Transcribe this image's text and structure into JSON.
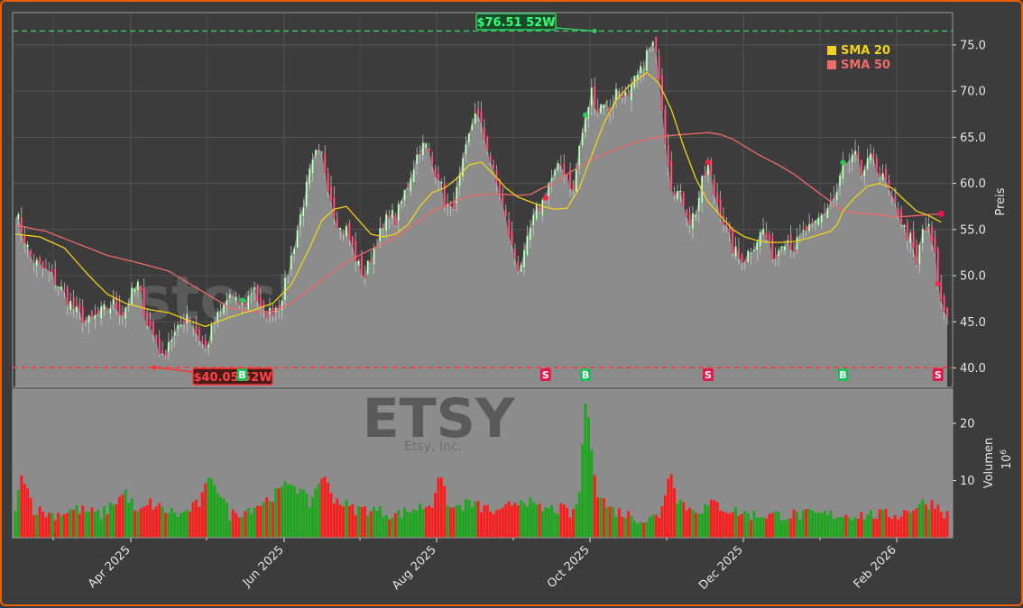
{
  "watermark": {
    "site": "stocksignale.trade",
    "ticker": "ETSY",
    "company": "Etsy, Inc."
  },
  "colors": {
    "up": "#1aa81a",
    "down": "#ff1a1a",
    "sma20": "#f2d21a",
    "sma50": "#f06a6a",
    "high_line": "#33cc66",
    "low_line": "#ff3333",
    "buy": "#1abf5a",
    "sell": "#e6174a",
    "area": "#8c8c8c"
  },
  "chart_data": {
    "type": "candlestick",
    "price_axis": {
      "label": "Preis",
      "ylim": [
        37.9,
        78.5
      ],
      "ticks": [
        "40.0",
        "45.0",
        "50.0",
        "55.0",
        "60.0",
        "65.0",
        "70.0",
        "75.0"
      ]
    },
    "volume_axis": {
      "label": "Volumen",
      "exponent": "10",
      "exponent_power": "6",
      "ylim": [
        0,
        26
      ],
      "ticks": [
        "10",
        "20"
      ]
    },
    "x_axis": {
      "ticks": [
        "Apr 2025",
        "Jun 2025",
        "Aug 2025",
        "Oct 2025",
        "Dec 2025",
        "Feb 2026"
      ]
    },
    "grid": true,
    "legend": {
      "placement": "top-right",
      "entries": [
        {
          "label": "SMA 20",
          "color": "#f2d21a"
        },
        {
          "label": "SMA 50",
          "color": "#f06a6a"
        }
      ]
    },
    "high_52w": {
      "value": 76.51,
      "label": "$76.51 52W"
    },
    "low_52w": {
      "value": 40.05,
      "label": "$40.05 52W"
    },
    "price_anchors": [
      [
        0,
        57
      ],
      [
        2,
        55
      ],
      [
        5,
        52
      ],
      [
        8,
        51
      ],
      [
        12,
        50
      ],
      [
        16,
        48
      ],
      [
        20,
        46
      ],
      [
        24,
        45
      ],
      [
        28,
        46
      ],
      [
        32,
        47
      ],
      [
        35,
        46
      ],
      [
        38,
        48
      ],
      [
        40,
        49
      ],
      [
        43,
        45
      ],
      [
        46,
        43
      ],
      [
        48,
        41
      ],
      [
        50,
        43
      ],
      [
        53,
        44
      ],
      [
        56,
        46
      ],
      [
        59,
        44
      ],
      [
        62,
        42
      ],
      [
        65,
        45
      ],
      [
        67,
        46
      ],
      [
        70,
        48
      ],
      [
        72,
        47
      ],
      [
        75,
        47
      ],
      [
        78,
        49
      ],
      [
        80,
        46
      ],
      [
        83,
        46
      ],
      [
        86,
        47
      ],
      [
        88,
        49
      ],
      [
        90,
        52
      ],
      [
        92,
        55
      ],
      [
        94,
        58
      ],
      [
        96,
        61
      ],
      [
        98,
        63
      ],
      [
        100,
        63
      ],
      [
        102,
        60
      ],
      [
        104,
        57
      ],
      [
        106,
        55
      ],
      [
        108,
        55
      ],
      [
        110,
        53
      ],
      [
        112,
        51
      ],
      [
        114,
        50
      ],
      [
        116,
        52
      ],
      [
        118,
        54
      ],
      [
        120,
        55
      ],
      [
        122,
        57
      ],
      [
        124,
        56
      ],
      [
        126,
        58
      ],
      [
        128,
        60
      ],
      [
        130,
        62
      ],
      [
        132,
        64
      ],
      [
        134,
        64
      ],
      [
        136,
        62
      ],
      [
        138,
        61
      ],
      [
        140,
        58
      ],
      [
        142,
        57
      ],
      [
        144,
        59
      ],
      [
        146,
        62
      ],
      [
        148,
        65
      ],
      [
        150,
        68
      ],
      [
        152,
        66
      ],
      [
        154,
        64
      ],
      [
        156,
        61
      ],
      [
        158,
        59
      ],
      [
        160,
        56
      ],
      [
        162,
        53
      ],
      [
        164,
        51
      ],
      [
        166,
        52
      ],
      [
        168,
        55
      ],
      [
        170,
        57
      ],
      [
        172,
        58
      ],
      [
        174,
        60
      ],
      [
        176,
        61
      ],
      [
        178,
        62
      ],
      [
        180,
        61
      ],
      [
        182,
        59
      ],
      [
        184,
        64
      ],
      [
        186,
        67
      ],
      [
        188,
        70
      ],
      [
        190,
        68
      ],
      [
        192,
        69
      ],
      [
        194,
        68
      ],
      [
        196,
        70
      ],
      [
        198,
        70
      ],
      [
        200,
        69
      ],
      [
        202,
        71
      ],
      [
        204,
        72
      ],
      [
        206,
        74
      ],
      [
        208,
        75
      ],
      [
        210,
        72
      ],
      [
        212,
        65
      ],
      [
        214,
        60
      ],
      [
        216,
        59
      ],
      [
        218,
        58
      ],
      [
        220,
        56
      ],
      [
        222,
        57
      ],
      [
        224,
        60
      ],
      [
        226,
        62
      ],
      [
        228,
        59
      ],
      [
        230,
        57
      ],
      [
        232,
        55
      ],
      [
        234,
        53
      ],
      [
        236,
        52
      ],
      [
        238,
        52
      ],
      [
        240,
        53
      ],
      [
        242,
        54
      ],
      [
        244,
        55
      ],
      [
        246,
        53
      ],
      [
        248,
        52
      ],
      [
        250,
        54
      ],
      [
        252,
        54
      ],
      [
        254,
        53
      ],
      [
        256,
        54
      ],
      [
        258,
        55
      ],
      [
        260,
        55
      ],
      [
        262,
        56
      ],
      [
        264,
        57
      ],
      [
        266,
        58
      ],
      [
        268,
        59
      ],
      [
        270,
        62
      ],
      [
        272,
        62
      ],
      [
        274,
        63
      ],
      [
        276,
        61
      ],
      [
        278,
        62
      ],
      [
        280,
        63
      ],
      [
        282,
        61
      ],
      [
        284,
        60
      ],
      [
        286,
        58
      ],
      [
        288,
        57
      ],
      [
        290,
        55
      ],
      [
        292,
        54
      ],
      [
        294,
        51
      ],
      [
        296,
        55
      ],
      [
        298,
        55
      ],
      [
        300,
        52
      ],
      [
        302,
        47
      ],
      [
        304,
        45.5
      ]
    ],
    "volume_anchors": [
      [
        0,
        4
      ],
      [
        2,
        12
      ],
      [
        6,
        5
      ],
      [
        12,
        4
      ],
      [
        20,
        5
      ],
      [
        28,
        4
      ],
      [
        36,
        8
      ],
      [
        40,
        4
      ],
      [
        44,
        6
      ],
      [
        48,
        5
      ],
      [
        54,
        4
      ],
      [
        60,
        6
      ],
      [
        64,
        11
      ],
      [
        70,
        4
      ],
      [
        76,
        5
      ],
      [
        80,
        6
      ],
      [
        86,
        8
      ],
      [
        90,
        10
      ],
      [
        96,
        6
      ],
      [
        100,
        11
      ],
      [
        104,
        7
      ],
      [
        110,
        5
      ],
      [
        116,
        5
      ],
      [
        124,
        4
      ],
      [
        130,
        5
      ],
      [
        136,
        6
      ],
      [
        138,
        11
      ],
      [
        142,
        5
      ],
      [
        148,
        6
      ],
      [
        154,
        5
      ],
      [
        158,
        4
      ],
      [
        162,
        6
      ],
      [
        166,
        7
      ],
      [
        170,
        5
      ],
      [
        174,
        5
      ],
      [
        178,
        5
      ],
      [
        182,
        4
      ],
      [
        184,
        8
      ],
      [
        186,
        24
      ],
      [
        188,
        16
      ],
      [
        190,
        8
      ],
      [
        194,
        5
      ],
      [
        200,
        4
      ],
      [
        206,
        3
      ],
      [
        210,
        4
      ],
      [
        214,
        12
      ],
      [
        216,
        7
      ],
      [
        220,
        5
      ],
      [
        224,
        5
      ],
      [
        228,
        6
      ],
      [
        232,
        5
      ],
      [
        240,
        4
      ],
      [
        246,
        4
      ],
      [
        252,
        4
      ],
      [
        258,
        4
      ],
      [
        264,
        4
      ],
      [
        270,
        4
      ],
      [
        276,
        4
      ],
      [
        282,
        4
      ],
      [
        288,
        4
      ],
      [
        292,
        5
      ],
      [
        296,
        6
      ],
      [
        300,
        6
      ],
      [
        304,
        4
      ]
    ],
    "sma20_anchors": [
      [
        0,
        54.5
      ],
      [
        8,
        54.2
      ],
      [
        16,
        53
      ],
      [
        24,
        50
      ],
      [
        30,
        48
      ],
      [
        36,
        47
      ],
      [
        44,
        46.3
      ],
      [
        50,
        46
      ],
      [
        56,
        45.2
      ],
      [
        62,
        44.5
      ],
      [
        70,
        45.5
      ],
      [
        78,
        46.3
      ],
      [
        84,
        47
      ],
      [
        90,
        49
      ],
      [
        96,
        53
      ],
      [
        100,
        56
      ],
      [
        104,
        57.2
      ],
      [
        108,
        57.5
      ],
      [
        112,
        56
      ],
      [
        116,
        54.5
      ],
      [
        120,
        54.2
      ],
      [
        124,
        54.5
      ],
      [
        128,
        55.5
      ],
      [
        132,
        57.5
      ],
      [
        136,
        59
      ],
      [
        140,
        59.5
      ],
      [
        144,
        60.5
      ],
      [
        148,
        62
      ],
      [
        152,
        62.3
      ],
      [
        156,
        61
      ],
      [
        160,
        59.5
      ],
      [
        164,
        58.5
      ],
      [
        168,
        58
      ],
      [
        172,
        57.5
      ],
      [
        176,
        57.2
      ],
      [
        180,
        57.3
      ],
      [
        184,
        59.5
      ],
      [
        188,
        63
      ],
      [
        192,
        66.5
      ],
      [
        196,
        69
      ],
      [
        200,
        70.5
      ],
      [
        204,
        71.5
      ],
      [
        206,
        72
      ],
      [
        210,
        70.8
      ],
      [
        214,
        68
      ],
      [
        218,
        64
      ],
      [
        222,
        60.5
      ],
      [
        226,
        58
      ],
      [
        230,
        56.5
      ],
      [
        234,
        55
      ],
      [
        238,
        54.2
      ],
      [
        242,
        53.8
      ],
      [
        246,
        53.6
      ],
      [
        250,
        53.6
      ],
      [
        254,
        53.7
      ],
      [
        258,
        54
      ],
      [
        262,
        54.4
      ],
      [
        266,
        54.8
      ],
      [
        268,
        55.5
      ],
      [
        270,
        57
      ],
      [
        274,
        58.5
      ],
      [
        278,
        59.7
      ],
      [
        282,
        60
      ],
      [
        286,
        59.5
      ],
      [
        290,
        58.2
      ],
      [
        294,
        57
      ],
      [
        298,
        56.5
      ],
      [
        302,
        55.8
      ]
    ],
    "sma50_anchors": [
      [
        0,
        55.5
      ],
      [
        10,
        54.8
      ],
      [
        20,
        53.5
      ],
      [
        30,
        52.2
      ],
      [
        40,
        51.4
      ],
      [
        50,
        50.5
      ],
      [
        60,
        48.5
      ],
      [
        70,
        46.5
      ],
      [
        78,
        46.1
      ],
      [
        84,
        46.1
      ],
      [
        90,
        47
      ],
      [
        96,
        48.5
      ],
      [
        102,
        50
      ],
      [
        108,
        51.5
      ],
      [
        114,
        52.5
      ],
      [
        120,
        53.5
      ],
      [
        126,
        54.5
      ],
      [
        132,
        56
      ],
      [
        136,
        57
      ],
      [
        140,
        57.5
      ],
      [
        144,
        58.2
      ],
      [
        148,
        58.6
      ],
      [
        152,
        58.8
      ],
      [
        156,
        58.8
      ],
      [
        160,
        58.8
      ],
      [
        164,
        58.7
      ],
      [
        168,
        58.8
      ],
      [
        172,
        59.5
      ],
      [
        176,
        60
      ],
      [
        180,
        61
      ],
      [
        184,
        61.8
      ],
      [
        188,
        62.6
      ],
      [
        192,
        63.2
      ],
      [
        196,
        63.7
      ],
      [
        200,
        64.2
      ],
      [
        206,
        64.8
      ],
      [
        210,
        65
      ],
      [
        214,
        65.2
      ],
      [
        218,
        65.3
      ],
      [
        222,
        65.4
      ],
      [
        226,
        65.5
      ],
      [
        230,
        65.3
      ],
      [
        234,
        64.8
      ],
      [
        238,
        64
      ],
      [
        242,
        63.2
      ],
      [
        246,
        62.5
      ],
      [
        250,
        61.8
      ],
      [
        254,
        61
      ],
      [
        258,
        60
      ],
      [
        262,
        59
      ],
      [
        266,
        58
      ],
      [
        270,
        57
      ],
      [
        274,
        56.8
      ],
      [
        278,
        56.7
      ],
      [
        282,
        56.6
      ],
      [
        286,
        56.4
      ],
      [
        290,
        56.4
      ],
      [
        294,
        56.5
      ],
      [
        298,
        56.6
      ],
      [
        302,
        56.7
      ]
    ],
    "signals": [
      {
        "type": "buy",
        "label": "B",
        "index": 74
      },
      {
        "type": "sell",
        "label": "S",
        "index": 173
      },
      {
        "type": "buy",
        "label": "B",
        "index": 186
      },
      {
        "type": "sell",
        "label": "S",
        "index": 226
      },
      {
        "type": "buy",
        "label": "B",
        "index": 270
      },
      {
        "type": "sell",
        "label": "S",
        "index": 301
      }
    ]
  }
}
